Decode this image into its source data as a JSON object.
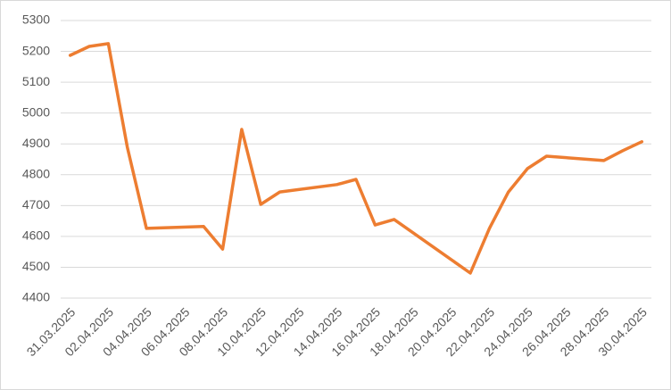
{
  "chart_data": {
    "type": "line",
    "x": [
      "31.03.2025",
      "01.04.2025",
      "02.04.2025",
      "03.04.2025",
      "04.04.2025",
      "07.04.2025",
      "08.04.2025",
      "09.04.2025",
      "10.04.2025",
      "11.04.2025",
      "14.04.2025",
      "15.04.2025",
      "16.04.2025",
      "17.04.2025",
      "21.04.2025",
      "22.04.2025",
      "23.04.2025",
      "24.04.2025",
      "25.04.2025",
      "28.04.2025",
      "29.04.2025",
      "30.04.2025"
    ],
    "series": [
      {
        "color": "#ed7d31",
        "values": [
          5187,
          5216,
          5225,
          4889,
          4626,
          4632,
          4559,
          4947,
          4704,
          4744,
          4768,
          4785,
          4637,
          4655,
          4481,
          4626,
          4744,
          4820,
          4860,
          4846,
          4878,
          4907
        ]
      }
    ],
    "xlim": [
      "31.03.2025",
      "30.04.2025"
    ],
    "xticks": [
      "31.03.2025",
      "02.04.2025",
      "04.04.2025",
      "06.04.2025",
      "08.04.2025",
      "10.04.2025",
      "12.04.2025",
      "14.04.2025",
      "16.04.2025",
      "18.04.2025",
      "20.04.2025",
      "22.04.2025",
      "24.04.2025",
      "26.04.2025",
      "28.04.2025",
      "30.04.2025"
    ],
    "ylim": [
      4400,
      5300
    ],
    "yticks": [
      4400,
      4500,
      4600,
      4700,
      4800,
      4900,
      5000,
      5100,
      5200,
      5300
    ],
    "grid": true
  }
}
